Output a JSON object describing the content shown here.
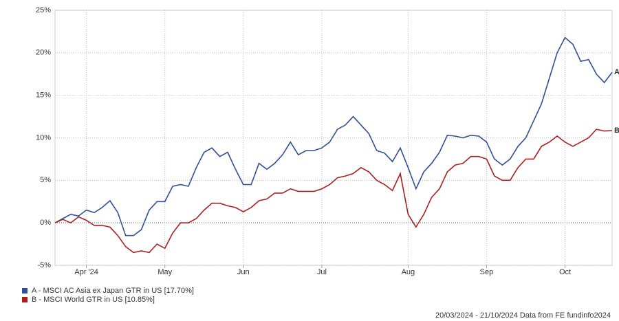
{
  "chart_data": {
    "type": "line",
    "categories": [
      null,
      null,
      null,
      null,
      "Apr '24",
      null,
      null,
      null,
      null,
      null,
      null,
      null,
      null,
      null,
      "May",
      null,
      null,
      null,
      null,
      null,
      null,
      null,
      null,
      null,
      "Jun",
      null,
      null,
      null,
      null,
      null,
      null,
      null,
      null,
      null,
      "Jul",
      null,
      null,
      null,
      null,
      null,
      null,
      null,
      null,
      null,
      null,
      "Aug",
      null,
      null,
      null,
      null,
      null,
      null,
      null,
      null,
      null,
      "Sep",
      null,
      null,
      null,
      null,
      null,
      null,
      null,
      null,
      null,
      "Oct",
      null,
      null,
      null,
      null,
      null,
      null
    ],
    "series": [
      {
        "name": "A - MSCI AC Asia ex Japan GTR in US [17.70%]",
        "end_label": "A",
        "color": "#2f4f9a",
        "values": [
          0,
          0.5,
          1.0,
          0.8,
          1.5,
          1.2,
          1.8,
          2.6,
          1.2,
          -1.5,
          -1.5,
          -0.8,
          1.5,
          2.5,
          2.5,
          4.3,
          4.5,
          4.3,
          6.5,
          8.3,
          8.8,
          7.8,
          8.3,
          6.3,
          4.5,
          4.5,
          7.0,
          6.3,
          7.0,
          8.0,
          9.5,
          8.0,
          8.5,
          8.5,
          8.8,
          9.5,
          11.0,
          11.5,
          12.5,
          11.5,
          10.5,
          8.5,
          8.2,
          7.2,
          8.8,
          6.5,
          4.0,
          6.0,
          7.0,
          8.3,
          10.3,
          10.2,
          10.0,
          10.3,
          10.2,
          9.5,
          7.5,
          6.8,
          7.5,
          9.0,
          10.0,
          12.0,
          14.0,
          17.0,
          20.0,
          21.8,
          21.0,
          19.0,
          19.2,
          17.5,
          16.5,
          17.7
        ]
      },
      {
        "name": "B - MSCI World GTR in US [10.85%]",
        "end_label": "B",
        "color": "#b01c1c",
        "values": [
          0,
          0.4,
          0.0,
          0.7,
          0.3,
          -0.3,
          -0.3,
          -0.5,
          -1.5,
          -2.8,
          -3.5,
          -3.3,
          -3.5,
          -2.5,
          -3.0,
          -1.2,
          0,
          0.0,
          0.5,
          1.5,
          2.3,
          2.3,
          2.0,
          1.8,
          1.3,
          1.8,
          2.6,
          2.8,
          3.5,
          3.5,
          4.0,
          3.7,
          3.7,
          3.7,
          4.0,
          4.5,
          5.3,
          5.5,
          5.8,
          6.5,
          6.0,
          5.0,
          4.5,
          3.8,
          5.8,
          1.0,
          -0.5,
          1.0,
          3.0,
          4.0,
          6.0,
          6.8,
          7.0,
          7.8,
          7.8,
          7.5,
          5.5,
          5.0,
          5.0,
          6.5,
          7.5,
          7.5,
          9.0,
          9.5,
          10.2,
          9.5,
          9.0,
          9.5,
          10.0,
          11.0,
          10.8,
          10.85
        ]
      }
    ],
    "ylim": [
      -5,
      25
    ],
    "yticks": [
      {
        "value": -5,
        "label": "-5%"
      },
      {
        "value": 0,
        "label": "0%"
      },
      {
        "value": 5,
        "label": "5%"
      },
      {
        "value": 10,
        "label": "10%"
      },
      {
        "value": 15,
        "label": "15%"
      },
      {
        "value": 20,
        "label": "20%"
      },
      {
        "value": 25,
        "label": "25%"
      }
    ],
    "grid": true,
    "source": "20/03/2024 - 21/10/2024 Data from FE fundinfo2024"
  }
}
